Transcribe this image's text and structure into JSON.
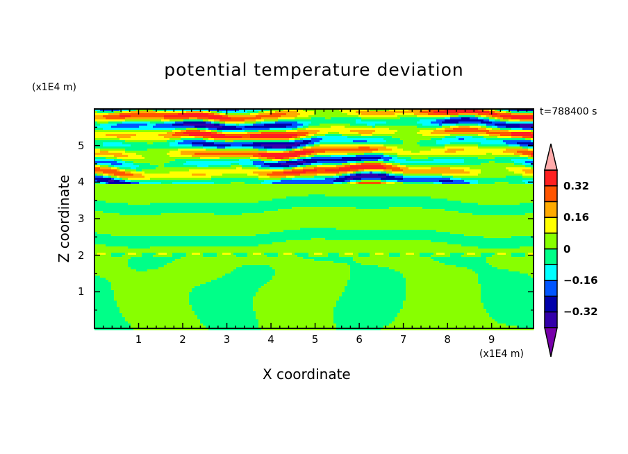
{
  "chart_data": {
    "type": "heatmap",
    "subtype": "filled-contour",
    "title": "potential temperature deviation",
    "xlabel": "X coordinate",
    "ylabel": "Z coordinate",
    "x_unit": "(x1E4 m)",
    "y_unit": "(x1E4 m)",
    "time_label": "t=788400 s",
    "xlim": [
      0,
      9.95
    ],
    "ylim": [
      0,
      6
    ],
    "x_ticks": [
      "1",
      "2",
      "3",
      "4",
      "5",
      "6",
      "7",
      "8",
      "9"
    ],
    "y_ticks": [
      "1",
      "2",
      "3",
      "4",
      "5"
    ],
    "colorbar": {
      "levels": [
        -0.4,
        -0.32,
        -0.24,
        -0.16,
        -0.08,
        0,
        0.08,
        0.16,
        0.24,
        0.32,
        0.4
      ],
      "tick_labels": [
        "0.32",
        "0.16",
        "0",
        "−0.16",
        "−0.32"
      ],
      "tick_values": [
        0.32,
        0.16,
        0,
        -0.16,
        -0.32
      ],
      "colors": [
        "#7700aa",
        "#3300aa",
        "#0000aa",
        "#0055ff",
        "#00ffff",
        "#00ff88",
        "#88ff00",
        "#ffff00",
        "#ffaa00",
        "#ff5500",
        "#ff2020",
        "#ffaaaa"
      ],
      "extend": "both"
    },
    "grid": false
  }
}
